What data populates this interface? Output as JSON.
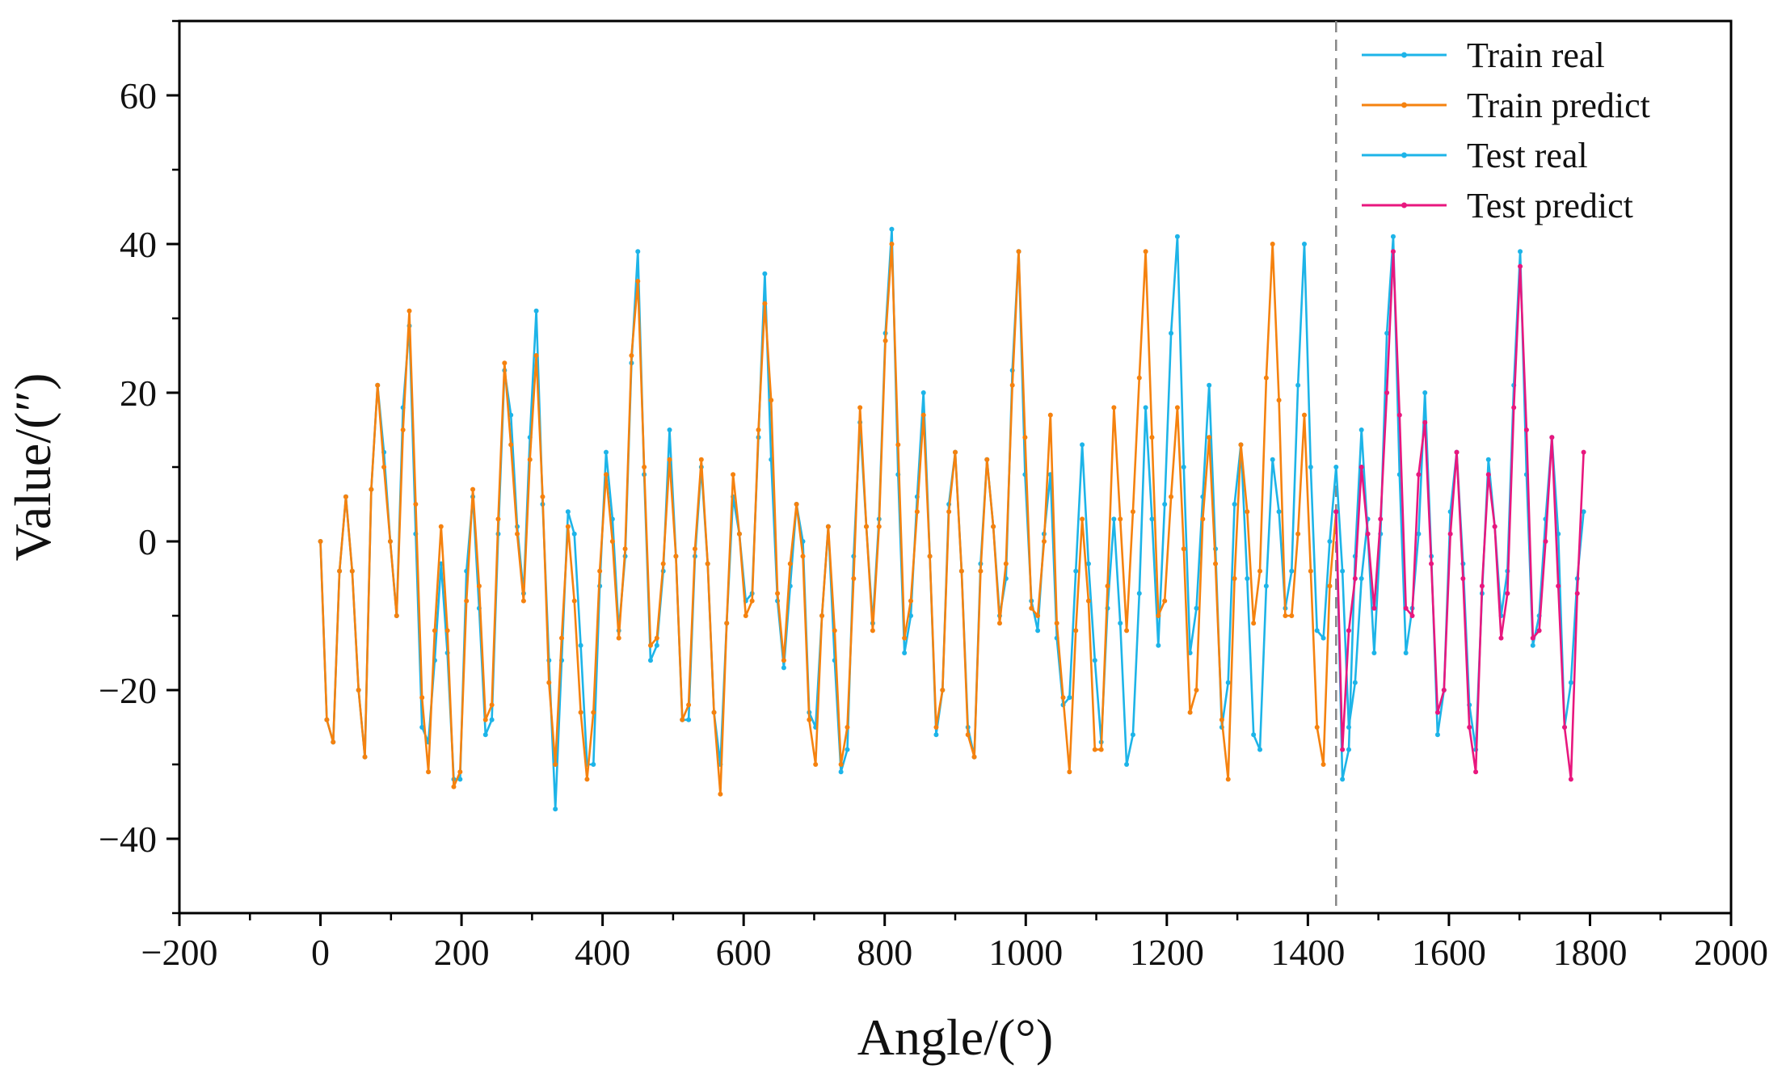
{
  "chart_data": {
    "type": "line",
    "title": "",
    "xlabel": "Angle/(°)",
    "ylabel": "Value/(″)",
    "xlim": [
      -200,
      2000
    ],
    "ylim": [
      -50,
      70
    ],
    "x_ticks": [
      -200,
      0,
      200,
      400,
      600,
      800,
      1000,
      1200,
      1400,
      1600,
      1800,
      2000
    ],
    "x_tick_labels": [
      "−200",
      "0",
      "200",
      "400",
      "600",
      "800",
      "1000",
      "1200",
      "1400",
      "1600",
      "1800",
      "2000"
    ],
    "y_ticks": [
      -40,
      -20,
      0,
      20,
      40,
      60
    ],
    "y_tick_labels": [
      "−40",
      "−20",
      "0",
      "20",
      "40",
      "60"
    ],
    "split_line_x": 1440,
    "grid": false,
    "legend_position": "top-right",
    "x_step": 9,
    "train_count": 161,
    "series": [
      {
        "name": "Train real",
        "color": "#1DB4E8"
      },
      {
        "name": "Train predict",
        "color": "#F5820F"
      },
      {
        "name": "Test real",
        "color": "#1DB4E8"
      },
      {
        "name": "Test predict",
        "color": "#E8177E"
      }
    ],
    "train_real": [
      0,
      -24,
      -27,
      -4,
      6,
      -4,
      -20,
      -29,
      7,
      21,
      12,
      0,
      -10,
      18,
      29,
      1,
      -25,
      -27,
      -16,
      -3,
      -15,
      -32,
      -32,
      -4,
      6,
      -9,
      -26,
      -24,
      1,
      23,
      17,
      2,
      -7,
      14,
      31,
      5,
      -16,
      -36,
      -16,
      4,
      1,
      -14,
      -30,
      -30,
      -6,
      12,
      3,
      -12,
      -2,
      24,
      39,
      9,
      -16,
      -14,
      -4,
      15,
      -2,
      -24,
      -24,
      -2,
      10,
      -3,
      -23,
      -30,
      -11,
      6,
      1,
      -8,
      -7,
      14,
      36,
      11,
      -8,
      -17,
      -6,
      5,
      0,
      -23,
      -25,
      -10,
      2,
      -16,
      -31,
      -28,
      -2,
      16,
      2,
      -11,
      3,
      28,
      42,
      9,
      -15,
      -10,
      6,
      20,
      -2,
      -26,
      -20,
      5,
      12,
      -4,
      -25,
      -29,
      -3,
      11,
      2,
      -10,
      -5,
      23,
      39,
      9,
      -8,
      -12,
      1,
      9,
      -13,
      -22,
      -21,
      -4,
      13,
      -3,
      -16,
      -27,
      -9,
      3,
      -11,
      -30,
      -26,
      -7,
      18,
      3,
      -14,
      5,
      28,
      41,
      10,
      -15,
      -9,
      6,
      21,
      -1,
      -25,
      -19,
      5,
      13,
      -5,
      -26,
      -28,
      -6,
      11,
      4,
      -9,
      -4,
      21,
      40,
      10,
      -12,
      -13,
      0,
      10,
      -4,
      -25,
      -19,
      -5,
      3
    ],
    "train_predict": [
      0,
      -24,
      -27,
      -4,
      6,
      -4,
      -20,
      -29,
      7,
      21,
      10,
      0,
      -10,
      15,
      31,
      5,
      -21,
      -31,
      -12,
      2,
      -12,
      -33,
      -31,
      -8,
      7,
      -6,
      -24,
      -22,
      3,
      24,
      13,
      1,
      -8,
      11,
      25,
      6,
      -19,
      -30,
      -13,
      2,
      -8,
      -23,
      -32,
      -23,
      -4,
      9,
      0,
      -13,
      -1,
      25,
      35,
      10,
      -14,
      -13,
      -3,
      11,
      -2,
      -24,
      -22,
      -1,
      11,
      -3,
      -23,
      -34,
      -11,
      9,
      1,
      -10,
      -8,
      15,
      32,
      19,
      -7,
      -16,
      -3,
      5,
      -2,
      -24,
      -30,
      -10,
      2,
      -12,
      -30,
      -25,
      -5,
      18,
      2,
      -12,
      2,
      27,
      40,
      13,
      -13,
      -8,
      4,
      17,
      -2,
      -25,
      -20,
      4,
      12,
      -4,
      -26,
      -29,
      -4,
      11,
      2,
      -11,
      -3,
      21,
      39,
      14,
      -9,
      -10,
      0,
      17,
      -11,
      -21,
      -31,
      -12,
      3,
      -8,
      -28,
      -28,
      -6,
      18,
      3,
      -12,
      4,
      22,
      39,
      14,
      -10,
      -8,
      6,
      18,
      -1,
      -23,
      -20,
      3,
      14,
      -3,
      -24,
      -32,
      -5,
      13,
      4,
      -11,
      -4,
      22,
      40,
      19,
      -10,
      -10,
      1,
      17,
      -4,
      -25,
      -30,
      -6,
      4
    ],
    "test_real": [
      4,
      -32,
      -28,
      -2,
      15,
      1,
      -15,
      1,
      28,
      41,
      9,
      -15,
      -9,
      1,
      20,
      -2,
      -26,
      -20,
      4,
      12,
      -3,
      -22,
      -28,
      -7,
      11,
      2,
      -10,
      -4,
      21,
      39,
      9,
      -14,
      -10,
      3,
      14,
      1,
      -25,
      -19,
      -5,
      4
    ],
    "test_predict": [
      4,
      -28,
      -12,
      -5,
      10,
      1,
      -9,
      3,
      20,
      39,
      17,
      -9,
      -10,
      9,
      16,
      -3,
      -23,
      -20,
      1,
      12,
      -5,
      -25,
      -31,
      -6,
      9,
      2,
      -13,
      -7,
      18,
      37,
      15,
      -13,
      -12,
      0,
      14,
      -6,
      -25,
      -32,
      -7,
      12
    ]
  }
}
